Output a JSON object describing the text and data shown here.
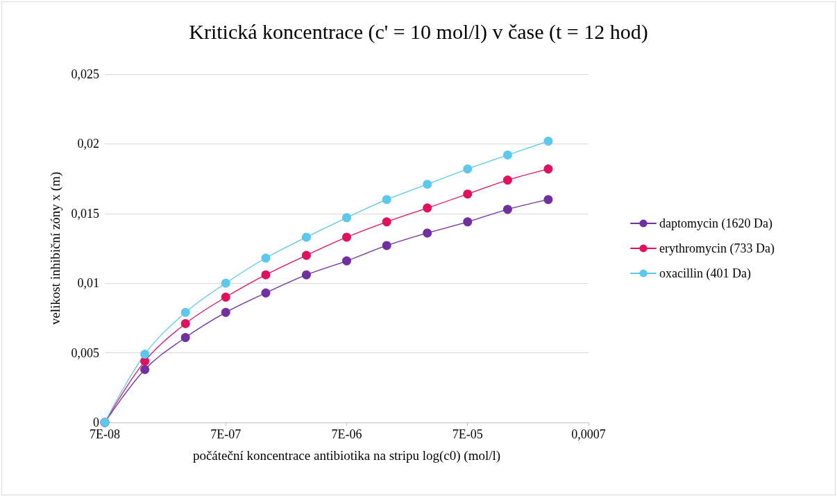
{
  "chart_data": {
    "type": "line",
    "title": "Kritická koncentrace (c' = 10 mol/l) v čase (t = 12 hod)",
    "xlabel": "počáteční koncentrace antibiotika na stripu log(c0) (mol/l)",
    "ylabel": "velikost inhibiční zóny x (m)",
    "x": [
      7e-08,
      1.5e-07,
      3.25e-07,
      7e-07,
      1.5e-06,
      3.25e-06,
      7e-06,
      1.5e-05,
      3.25e-05,
      7e-05,
      0.00015,
      0.000325
    ],
    "series": [
      {
        "name": "daptomycin (1620 Da)",
        "color": "#7030a0",
        "values": [
          0,
          0.0038,
          0.0061,
          0.0079,
          0.0093,
          0.0106,
          0.0116,
          0.0127,
          0.0136,
          0.0144,
          0.0153,
          0.016
        ]
      },
      {
        "name": "erythromycin (733 Da)",
        "color": "#e0115f",
        "values": [
          0,
          0.0044,
          0.0071,
          0.009,
          0.0106,
          0.012,
          0.0133,
          0.0144,
          0.0154,
          0.0164,
          0.0174,
          0.0182
        ]
      },
      {
        "name": "oxacillin (401 Da)",
        "color": "#5bc8ec",
        "values": [
          0,
          0.0049,
          0.0079,
          0.01,
          0.0118,
          0.0133,
          0.0147,
          0.016,
          0.0171,
          0.0182,
          0.0192,
          0.0202
        ]
      }
    ],
    "log": "x",
    "xlim": [
      7e-08,
      0.0007
    ],
    "xticks": [
      {
        "value": 7e-08,
        "label": "7E-08"
      },
      {
        "value": 7e-07,
        "label": "7E-07"
      },
      {
        "value": 7e-06,
        "label": "7E-06"
      },
      {
        "value": 7e-05,
        "label": "7E-05"
      },
      {
        "value": 0.0007,
        "label": "0,0007"
      }
    ],
    "ylim": [
      0,
      0.025
    ],
    "yticks": [
      0,
      {
        "value": 0.005,
        "label": "0,005"
      },
      {
        "value": 0.01,
        "label": "0,01"
      },
      {
        "value": 0.015,
        "label": "0,015"
      },
      {
        "value": 0.02,
        "label": "0,02"
      },
      {
        "value": 0.025,
        "label": "0,025"
      }
    ],
    "grid": "y",
    "legend": "right",
    "marker": "circle",
    "line_style": "solid"
  }
}
